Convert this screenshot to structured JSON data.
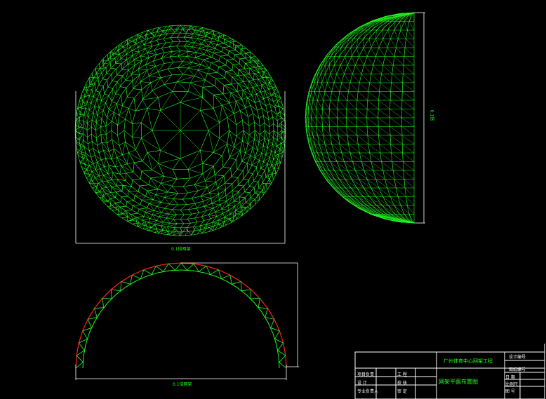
{
  "colors": {
    "background": "#000000",
    "mesh": "#22ff22",
    "chord": "#ff2020",
    "lines": "#ffffff"
  },
  "views": {
    "plan_dimension_label": "0.1倍网架",
    "arch_dimension_label": "0.1倍网架",
    "side_dimension_label": "0.1倍"
  },
  "title_block": {
    "project_name": "广州体育中心网架工程",
    "drawing_title": "网架平面布置图",
    "left_rows": [
      {
        "role": "项目负责",
        "col2": "工 程"
      },
      {
        "role": "设 计",
        "col2": "校 核"
      },
      {
        "role": "专业负责人",
        "col2": "审 定"
      }
    ],
    "right_rows": [
      "设计编号",
      "",
      "图纸编号",
      "日 期",
      "比例尺",
      "图 号"
    ]
  }
}
